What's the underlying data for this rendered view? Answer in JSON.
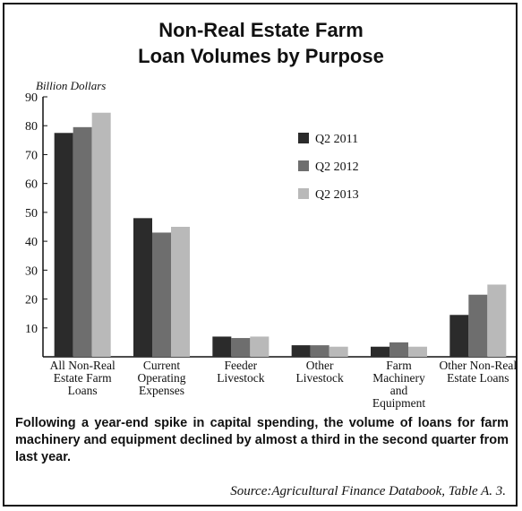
{
  "title_line1": "Non-Real Estate Farm",
  "title_line2": "Loan Volumes by Purpose",
  "caption": "Following a year-end spike in capital spending, the volume of loans for farm machinery and equipment declined by almost a third in the second quarter from last year.",
  "source": "Source:Agricultural Finance Databook, Table A. 3.",
  "colors": {
    "Q2 2011": "#2b2b2b",
    "Q2 2012": "#6e6e6e",
    "Q2 2013": "#b9b9b9"
  },
  "chart_data": {
    "type": "bar",
    "title": "Non-Real Estate Farm Loan Volumes by Purpose",
    "ylabel": "Billion Dollars",
    "xlabel": "",
    "ylim": [
      0,
      90
    ],
    "yticks": [
      10,
      20,
      30,
      40,
      50,
      60,
      70,
      80,
      90
    ],
    "grid": false,
    "legend_position": "top-right",
    "categories": [
      "All Non-Real Estate Farm Loans",
      "Current Operating Expenses",
      "Feeder Livestock",
      "Other Livestock",
      "Farm Machinery and Equipment",
      "Other Non-Real Estate Loans"
    ],
    "category_lines": [
      [
        "All Non-Real",
        "Estate Farm",
        "Loans"
      ],
      [
        "Current",
        "Operating",
        "Expenses"
      ],
      [
        "Feeder",
        "Livestock"
      ],
      [
        "Other",
        "Livestock"
      ],
      [
        "Farm",
        "Machinery",
        "and",
        "Equipment"
      ],
      [
        "Other Non-Real",
        "Estate Loans"
      ]
    ],
    "series": [
      {
        "name": "Q2 2011",
        "values": [
          77.5,
          48,
          7,
          4,
          3.5,
          14.5
        ]
      },
      {
        "name": "Q2 2012",
        "values": [
          79.5,
          43,
          6.5,
          4,
          5,
          21.5
        ]
      },
      {
        "name": "Q2 2013",
        "values": [
          84.5,
          45,
          7,
          3.5,
          3.5,
          25
        ]
      }
    ]
  }
}
